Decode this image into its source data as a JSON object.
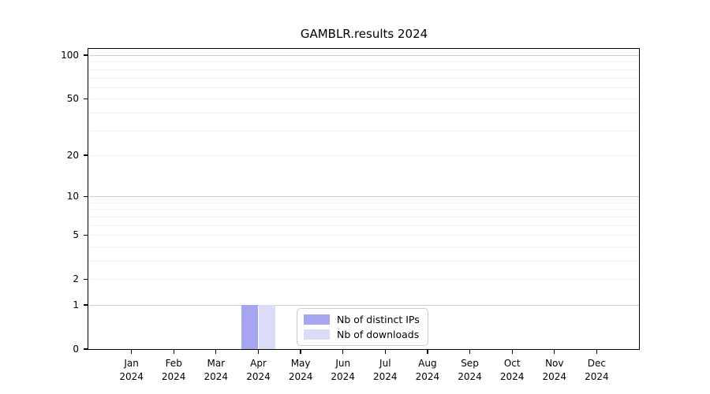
{
  "chart_data": {
    "type": "bar",
    "title": "GAMBLR.results 2024",
    "x_months": [
      "Jan",
      "Feb",
      "Mar",
      "Apr",
      "May",
      "Jun",
      "Jul",
      "Aug",
      "Sep",
      "Oct",
      "Nov",
      "Dec"
    ],
    "x_year": "2024",
    "series": [
      {
        "name": "Nb of distinct IPs",
        "color": "#a5a5f2",
        "values": [
          0,
          0,
          0,
          1,
          0,
          0,
          0,
          0,
          0,
          0,
          0,
          0
        ]
      },
      {
        "name": "Nb of downloads",
        "color": "#dcdcf9",
        "values": [
          0,
          0,
          0,
          1,
          0,
          0,
          0,
          0,
          0,
          0,
          0,
          0
        ]
      }
    ],
    "y_scale": "log10(1+v)",
    "ylim": [
      0,
      105
    ],
    "y_tick_labels": [
      0,
      1,
      2,
      5,
      10,
      20,
      50,
      100
    ],
    "y_major_gridlines": [
      1,
      10,
      100
    ],
    "y_minor_gridlines": [
      2,
      3,
      4,
      5,
      6,
      7,
      8,
      9,
      20,
      30,
      40,
      50,
      60,
      70,
      80,
      90
    ],
    "grid": "horizontal only",
    "legend_position": "lower center"
  },
  "colors": {
    "background": "#ffffff",
    "axis": "#000000",
    "grid_major": "#cccccc",
    "grid_minor": "#f0f0f0",
    "legend_border": "#cccccc",
    "bar_distinct_ips": "#a5a5f2",
    "bar_downloads": "#dcdcf9"
  }
}
